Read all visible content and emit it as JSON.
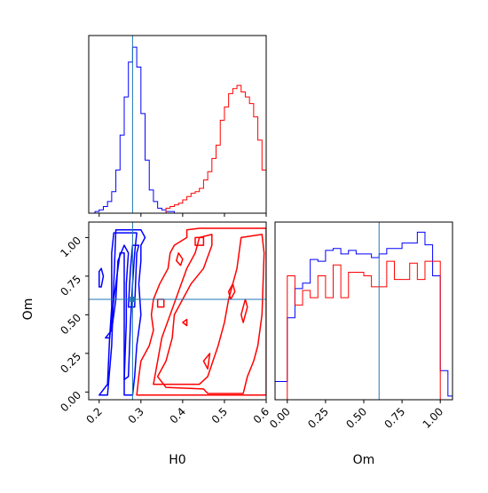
{
  "colors": {
    "blue": "#0000ff",
    "red": "#ff0000",
    "truth": "#1f77b4",
    "frame": "#000000"
  },
  "chart_data": [
    {
      "type": "histogram",
      "panel": "H0 marginal",
      "bin_width": 0.01,
      "x_range": [
        0.175,
        0.6
      ],
      "y_ticks_shown": false,
      "x_tick_labels_shown": false,
      "series": [
        {
          "name": "",
          "color": "blue",
          "bin_start": 0.19,
          "values": [
            1,
            2,
            4,
            7,
            13,
            26,
            47,
            70,
            91,
            100,
            88,
            60,
            32,
            14,
            7,
            3,
            2,
            1,
            1
          ]
        },
        {
          "name": "",
          "color": "red",
          "bin_start": 0.36,
          "values": [
            3,
            4,
            5,
            6,
            8,
            10,
            12,
            13,
            15,
            20,
            25,
            33,
            41,
            56,
            64,
            72,
            75,
            77,
            73,
            70,
            66,
            58,
            44,
            26,
            14
          ]
        }
      ],
      "truth": {
        "x": 0.28
      }
    },
    {
      "type": "contour",
      "panel": "H0 vs Om",
      "xlabel": "H0",
      "ylabel": "Om",
      "x_range": [
        0.175,
        0.6
      ],
      "y_range": [
        -0.05,
        1.1
      ],
      "x_ticks": [
        0.2,
        0.3,
        0.4,
        0.5,
        0.6
      ],
      "x_tick_labels": [
        "0.2",
        "0.3",
        "0.4",
        "0.5",
        "0.6"
      ],
      "y_ticks": [
        0.0,
        0.25,
        0.5,
        0.75,
        1.0
      ],
      "y_tick_labels": [
        "0.00",
        "0.25",
        "0.50",
        "0.75",
        "1.00"
      ],
      "truth": {
        "x": 0.28,
        "y": 0.6
      },
      "series": [
        {
          "name": "",
          "color": "blue",
          "contours": [
            [
              [
                0.2,
                -0.02
              ],
              [
                0.22,
                -0.02
              ],
              [
                0.23,
                0.3
              ],
              [
                0.235,
                0.7
              ],
              [
                0.24,
                1.05
              ],
              [
                0.3,
                1.05
              ],
              [
                0.31,
                1.0
              ],
              [
                0.3,
                0.95
              ],
              [
                0.3,
                0.85
              ],
              [
                0.295,
                0.7
              ],
              [
                0.3,
                0.5
              ],
              [
                0.29,
                0.3
              ],
              [
                0.285,
                0.1
              ],
              [
                0.28,
                -0.02
              ],
              [
                0.26,
                -0.02
              ],
              [
                0.26,
                0.25
              ],
              [
                0.26,
                0.5
              ],
              [
                0.26,
                0.75
              ],
              [
                0.26,
                0.9
              ],
              [
                0.25,
                0.9
              ],
              [
                0.235,
                0.6
              ],
              [
                0.225,
                0.35
              ],
              [
                0.22,
                0.05
              ]
            ],
            [
              [
                0.215,
                0.35
              ],
              [
                0.225,
                0.35
              ],
              [
                0.23,
                0.55
              ],
              [
                0.23,
                0.9
              ],
              [
                0.235,
                1.03
              ],
              [
                0.29,
                1.03
              ],
              [
                0.285,
                0.9
              ],
              [
                0.28,
                0.7
              ],
              [
                0.275,
                0.45
              ],
              [
                0.27,
                0.1
              ],
              [
                0.26,
                0.08
              ],
              [
                0.265,
                0.45
              ],
              [
                0.265,
                0.7
              ],
              [
                0.27,
                0.9
              ],
              [
                0.26,
                0.95
              ],
              [
                0.245,
                0.85
              ],
              [
                0.24,
                0.6
              ],
              [
                0.23,
                0.4
              ]
            ],
            [
              [
                0.27,
                0.55
              ],
              [
                0.285,
                0.55
              ],
              [
                0.29,
                0.9
              ],
              [
                0.295,
                0.95
              ],
              [
                0.28,
                0.95
              ],
              [
                0.275,
                0.8
              ]
            ],
            [
              [
                0.2,
                0.68
              ],
              [
                0.205,
                0.68
              ],
              [
                0.21,
                0.75
              ],
              [
                0.205,
                0.8
              ],
              [
                0.2,
                0.78
              ]
            ]
          ]
        },
        {
          "name": "",
          "color": "red",
          "contours": [
            [
              [
                0.29,
                -0.02
              ],
              [
                0.6,
                -0.02
              ],
              [
                0.6,
                1.06
              ],
              [
                0.44,
                1.06
              ],
              [
                0.41,
                1.05
              ],
              [
                0.41,
                1.0
              ],
              [
                0.38,
                0.95
              ],
              [
                0.37,
                0.9
              ],
              [
                0.365,
                0.8
              ],
              [
                0.345,
                0.7
              ],
              [
                0.33,
                0.6
              ],
              [
                0.325,
                0.5
              ],
              [
                0.33,
                0.4
              ],
              [
                0.32,
                0.3
              ],
              [
                0.3,
                0.2
              ],
              [
                0.295,
                0.1
              ]
            ],
            [
              [
                0.33,
                0.05
              ],
              [
                0.44,
                0.05
              ],
              [
                0.46,
                0.1
              ],
              [
                0.485,
                0.3
              ],
              [
                0.5,
                0.45
              ],
              [
                0.51,
                0.6
              ],
              [
                0.53,
                0.8
              ],
              [
                0.54,
                1.0
              ],
              [
                0.59,
                1.02
              ],
              [
                0.595,
                0.9
              ],
              [
                0.59,
                0.5
              ],
              [
                0.58,
                0.3
              ],
              [
                0.57,
                0.2
              ],
              [
                0.555,
                0.1
              ],
              [
                0.545,
                -0.01
              ],
              [
                0.46,
                -0.01
              ],
              [
                0.45,
                0.02
              ],
              [
                0.36,
                0.03
              ],
              [
                0.34,
                0.1
              ],
              [
                0.36,
                0.2
              ],
              [
                0.375,
                0.35
              ],
              [
                0.38,
                0.5
              ],
              [
                0.4,
                0.6
              ],
              [
                0.42,
                0.7
              ],
              [
                0.45,
                0.8
              ],
              [
                0.47,
                0.95
              ],
              [
                0.47,
                1.02
              ],
              [
                0.44,
                1.0
              ],
              [
                0.43,
                0.9
              ],
              [
                0.41,
                0.8
              ],
              [
                0.39,
                0.65
              ],
              [
                0.37,
                0.5
              ],
              [
                0.35,
                0.35
              ]
            ],
            [
              [
                0.43,
                0.95
              ],
              [
                0.45,
                0.95
              ],
              [
                0.45,
                1.0
              ],
              [
                0.43,
                1.0
              ]
            ],
            [
              [
                0.385,
                0.85
              ],
              [
                0.395,
                0.82
              ],
              [
                0.4,
                0.86
              ],
              [
                0.39,
                0.9
              ]
            ],
            [
              [
                0.34,
                0.55
              ],
              [
                0.355,
                0.55
              ],
              [
                0.355,
                0.6
              ],
              [
                0.34,
                0.6
              ]
            ],
            [
              [
                0.4,
                0.45
              ],
              [
                0.41,
                0.43
              ],
              [
                0.41,
                0.47
              ]
            ],
            [
              [
                0.45,
                0.2
              ],
              [
                0.46,
                0.15
              ],
              [
                0.465,
                0.25
              ]
            ],
            [
              [
                0.515,
                0.6
              ],
              [
                0.525,
                0.65
              ],
              [
                0.52,
                0.7
              ],
              [
                0.51,
                0.65
              ]
            ],
            [
              [
                0.545,
                0.45
              ],
              [
                0.555,
                0.55
              ],
              [
                0.55,
                0.6
              ],
              [
                0.54,
                0.5
              ]
            ]
          ]
        }
      ]
    },
    {
      "type": "histogram",
      "panel": "Om marginal",
      "xlabel": "Om",
      "bin_width": 0.05,
      "x_range": [
        -0.08,
        1.08
      ],
      "x_ticks": [
        0.0,
        0.25,
        0.5,
        0.75,
        1.0
      ],
      "x_tick_labels": [
        "0.00",
        "0.25",
        "0.50",
        "0.75",
        "1.00"
      ],
      "y_ticks_shown": false,
      "series": [
        {
          "name": "",
          "color": "blue",
          "bin_start": -0.1,
          "values": [
            0.1,
            0.1,
            0.45,
            0.61,
            0.64,
            0.77,
            0.76,
            0.82,
            0.83,
            0.8,
            0.82,
            0.8,
            0.8,
            0.78,
            0.8,
            0.83,
            0.83,
            0.86,
            0.86,
            0.92,
            0.85,
            0.68,
            0.16,
            0.02
          ]
        },
        {
          "name": "",
          "color": "red",
          "bin_start": 0.0,
          "values": [
            0.68,
            0.52,
            0.6,
            0.56,
            0.68,
            0.56,
            0.74,
            0.56,
            0.7,
            0.7,
            0.68,
            0.62,
            0.62,
            0.76,
            0.66,
            0.66,
            0.75,
            0.66,
            0.76,
            0.76
          ]
        }
      ],
      "truth": {
        "x": 0.6
      }
    }
  ]
}
